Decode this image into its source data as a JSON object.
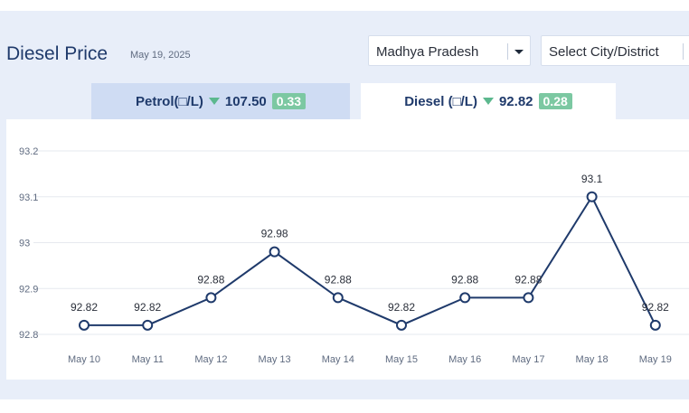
{
  "header": {
    "title": "Diesel Price",
    "date": "May 19, 2025"
  },
  "filters": {
    "state": "Madhya Pradesh",
    "city_placeholder": "Select City/District"
  },
  "tabs": [
    {
      "label": "Petrol(□/L)",
      "price": "107.50",
      "change": "0.33",
      "trend": "down",
      "active": false
    },
    {
      "label": "Diesel (□/L)",
      "price": "92.82",
      "change": "0.28",
      "trend": "down",
      "active": true
    }
  ],
  "colors": {
    "line": "#1f3a6b",
    "trend_down": "#5cb88e",
    "badge": "#7cc8a2",
    "grid": "#e6e9ef"
  },
  "chart_data": {
    "type": "line",
    "categories": [
      "May 10",
      "May 11",
      "May 12",
      "May 13",
      "May 14",
      "May 15",
      "May 16",
      "May 17",
      "May 18",
      "May 19"
    ],
    "values": [
      92.82,
      92.82,
      92.88,
      92.98,
      92.88,
      92.82,
      92.88,
      92.88,
      93.1,
      92.82
    ],
    "data_labels": [
      "92.82",
      "92.82",
      "92.88",
      "92.98",
      "92.88",
      "92.82",
      "92.88",
      "92.88",
      "93.1",
      "92.82"
    ],
    "y_ticks": [
      "92.8",
      "92.9",
      "93",
      "93.1",
      "93.2"
    ],
    "y_tick_values": [
      92.8,
      92.9,
      93.0,
      93.1,
      93.2
    ],
    "ylim": [
      92.8,
      93.2
    ],
    "grid": true
  }
}
